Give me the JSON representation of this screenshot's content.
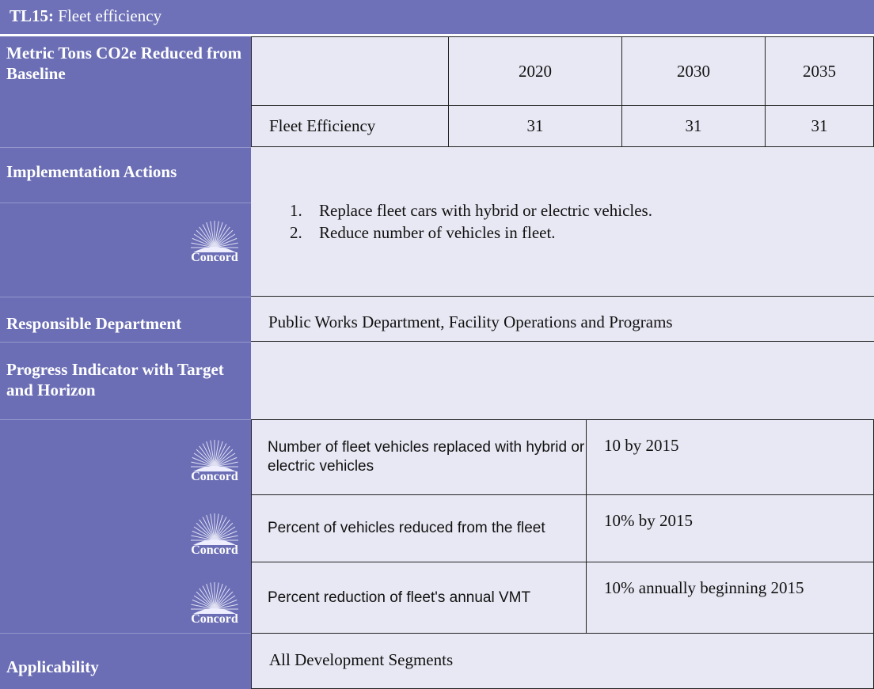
{
  "title": {
    "code": "TL15:",
    "text": "Fleet efficiency"
  },
  "logo": "Concord",
  "metric": {
    "label": "Metric Tons CO2e Reduced from Baseline",
    "years": [
      "2020",
      "2030",
      "2035"
    ],
    "row": {
      "name": "Fleet Efficiency",
      "values": [
        "31",
        "31",
        "31"
      ]
    }
  },
  "implementation": {
    "label": "Implementation Actions",
    "actions": [
      "Replace fleet cars with hybrid or electric vehicles.",
      "Reduce number of vehicles in fleet."
    ]
  },
  "responsible": {
    "label": "Responsible Department",
    "text": "Public Works Department, Facility Operations and Programs"
  },
  "progress": {
    "label": "Progress Indicator with Target and Horizon",
    "rows": [
      {
        "indicator": "Number of fleet vehicles replaced with hybrid or electric vehicles",
        "target": "10 by 2015"
      },
      {
        "indicator": "Percent of vehicles reduced from the fleet",
        "target": "10% by 2015"
      },
      {
        "indicator": "Percent reduction of fleet's annual VMT",
        "target": "10% annually beginning 2015"
      }
    ]
  },
  "applicability": {
    "label": "Applicability",
    "text": "All Development Segments"
  }
}
